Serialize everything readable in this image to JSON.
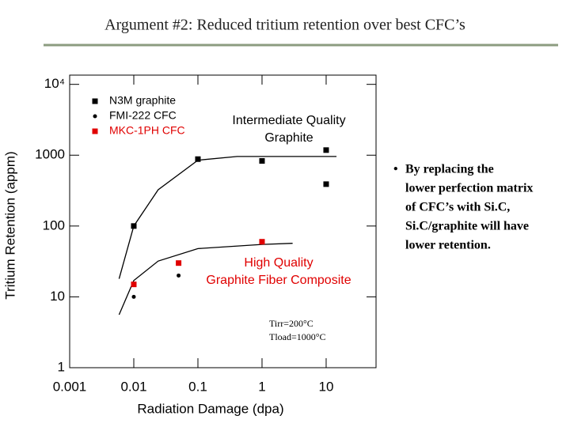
{
  "slide": {
    "title": "Argument #2: Reduced tritium retention over best CFC’s",
    "bullet_lines": [
      "By replacing the",
      "lower perfection matrix",
      "of CFC’s with Si.C,",
      "Si.C/graphite will have",
      "lower retention."
    ]
  },
  "chart_data": {
    "type": "scatter",
    "x_scale": "log",
    "y_scale": "log",
    "x_label": "Radiation Damage (dpa)",
    "y_label": "Tritium Retention (appm)",
    "xlim": [
      0.001,
      60
    ],
    "ylim": [
      1,
      13500
    ],
    "xticks": [
      0.001,
      0.01,
      0.1,
      1,
      10
    ],
    "yticks": [
      1,
      10,
      100,
      1000,
      {
        "value": 10000,
        "label": "10⁴"
      }
    ],
    "legend": "upper left",
    "series": [
      {
        "name": "N3M graphite",
        "color": "#000000",
        "marker": "square",
        "x": [
          0.01,
          0.1,
          1,
          10,
          10
        ],
        "values": [
          100,
          880,
          830,
          1180,
          390
        ]
      },
      {
        "name": "FMI-222 CFC",
        "color": "#000000",
        "marker": "circle",
        "x": [
          0.01,
          0.05
        ],
        "values": [
          10,
          20
        ]
      },
      {
        "name": "MKC-1PH CFC",
        "color": "#e00000",
        "marker": "square",
        "x": [
          0.01,
          0.05,
          1
        ],
        "values": [
          15,
          30,
          60
        ]
      }
    ],
    "fits": [
      {
        "color": "#000000",
        "x": [
          0.0059,
          0.01,
          0.024,
          0.1,
          0.41,
          14.5
        ],
        "values": [
          18,
          100,
          325,
          850,
          960,
          960
        ]
      },
      {
        "color": "#000000",
        "x": [
          0.0059,
          0.01,
          0.024,
          0.1,
          1,
          3
        ],
        "values": [
          5.6,
          17,
          32,
          48,
          55,
          57
        ]
      }
    ],
    "annotations": [
      {
        "lines": [
          "Intermediate Quality",
          "Graphite"
        ],
        "color": "#000000"
      },
      {
        "lines": [
          "High Quality",
          "Graphite Fiber Composite"
        ],
        "color": "#e00000"
      },
      {
        "lines": [
          "Tirr=200°C",
          "Tload=1000°C"
        ],
        "color": "#000000"
      }
    ]
  }
}
